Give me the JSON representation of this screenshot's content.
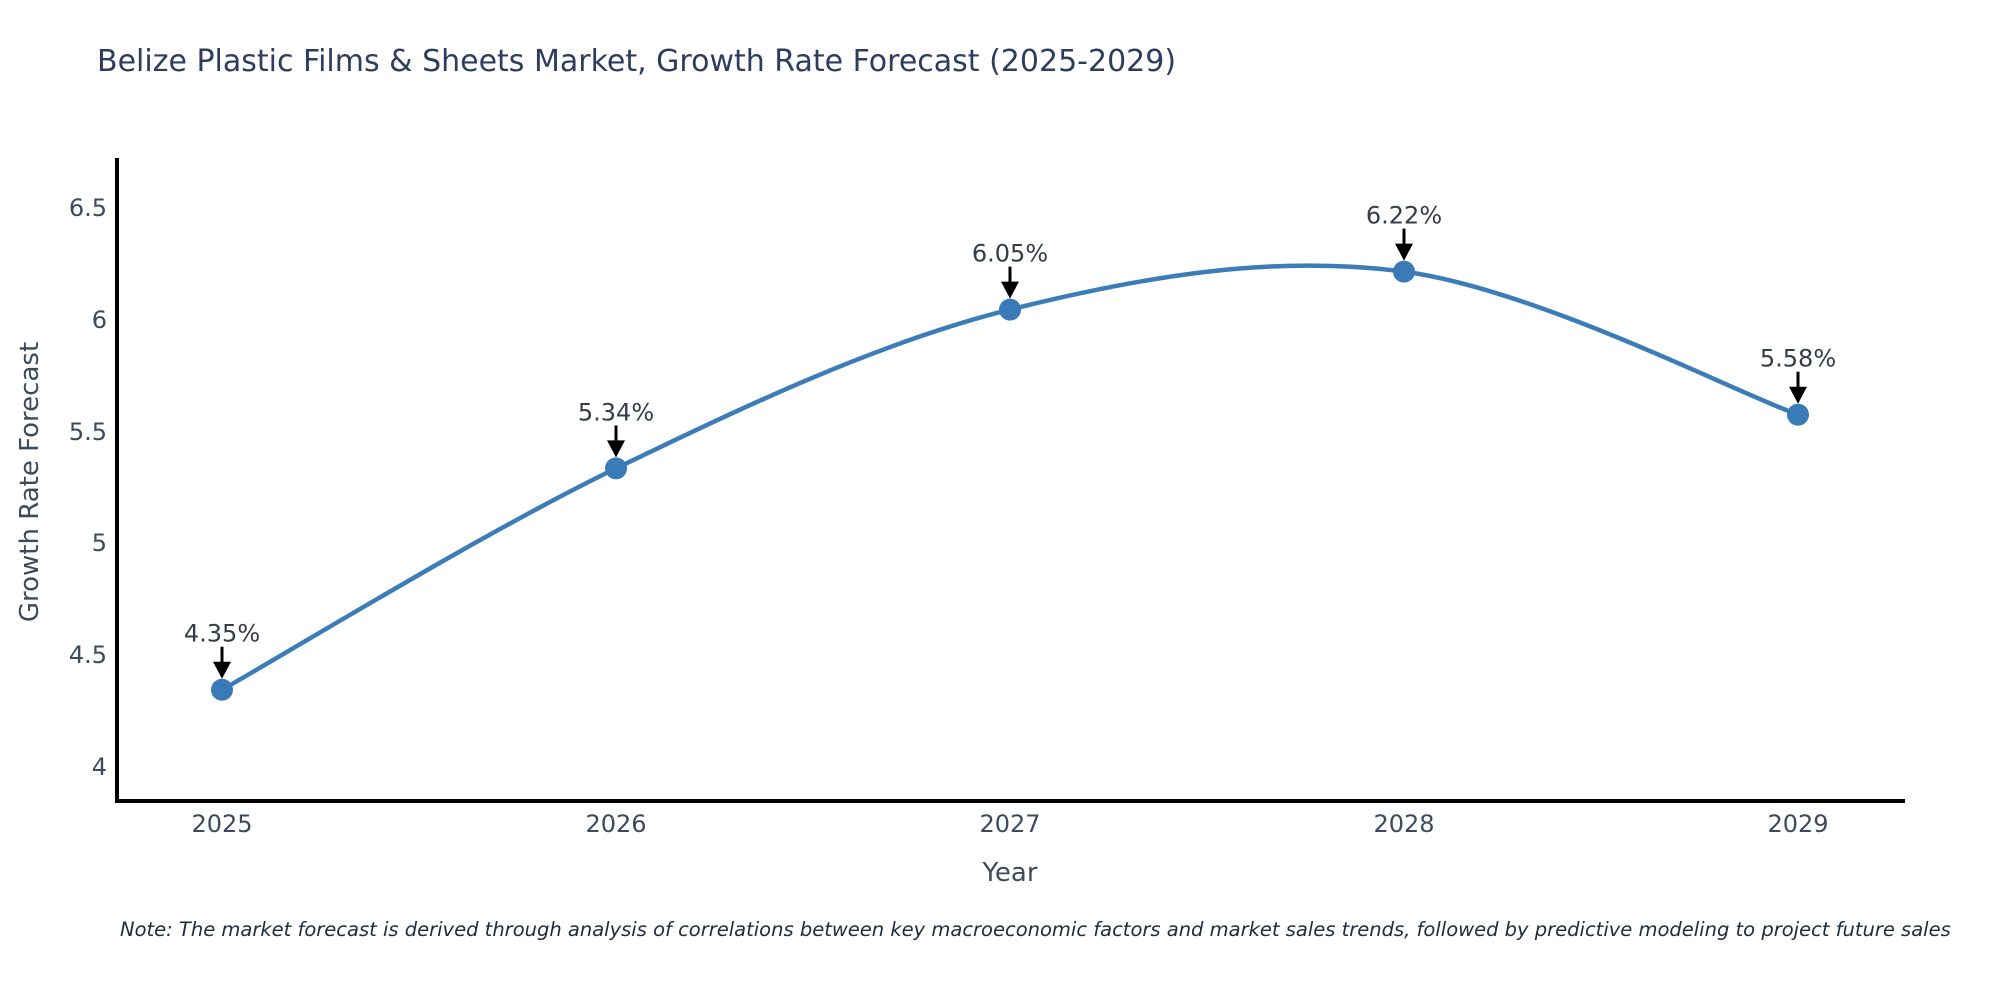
{
  "header": {
    "title": "Belize Plastic Films & Sheets Market, Growth Rate Forecast (2025-2029)"
  },
  "chart_data": {
    "type": "line",
    "title": "Belize Plastic Films & Sheets Market, Growth Rate Forecast (2025-2029)",
    "x": [
      2025,
      2026,
      2027,
      2028,
      2029
    ],
    "values": [
      4.35,
      5.34,
      6.05,
      6.22,
      5.58
    ],
    "point_labels": [
      "4.35%",
      "5.34%",
      "6.05%",
      "6.22%",
      "5.58%"
    ],
    "xlabel": "Year",
    "ylabel": "Growth Rate Forecast",
    "xtick_labels": [
      "2025",
      "2026",
      "2027",
      "2028",
      "2029"
    ],
    "ytick_values": [
      4,
      4.5,
      5,
      5.5,
      6,
      6.5
    ],
    "ytick_labels": [
      "4",
      "4.5",
      "5",
      "5.5",
      "6",
      "6.5"
    ],
    "ylim": [
      3.85,
      6.73
    ],
    "grid": false,
    "legend": null,
    "line_shape": "spline",
    "line_color": "#3c7db8",
    "marker_color": "#3a7ab6",
    "annotation_arrow_color": "#000000",
    "axis_line_color": "#000000"
  },
  "footer": {
    "note": "Note: The market forecast is derived through analysis of correlations between key macroeconomic factors and market sales trends, followed by predictive modeling to project future sales"
  }
}
